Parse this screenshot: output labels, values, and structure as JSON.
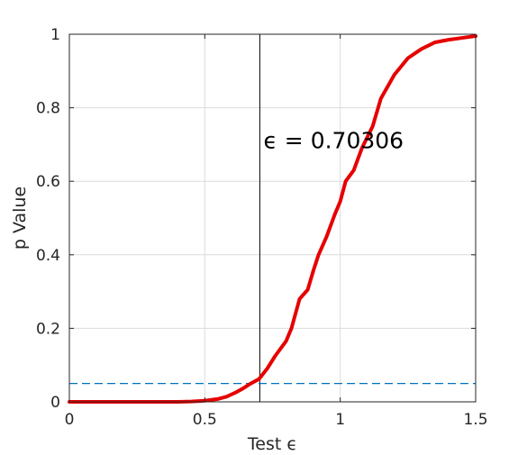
{
  "chart_data": {
    "type": "line",
    "xlabel": "Test ϵ",
    "ylabel": "p Value",
    "xlim": [
      0,
      1.5
    ],
    "ylim": [
      0,
      1
    ],
    "xticks": [
      0,
      0.5,
      1,
      1.5
    ],
    "xtick_labels": [
      "0",
      "0.5",
      "1",
      "1.5"
    ],
    "yticks": [
      0,
      0.2,
      0.4,
      0.6,
      0.8,
      1
    ],
    "ytick_labels": [
      "0",
      "0.2",
      "0.4",
      "0.6",
      "0.8",
      "1"
    ],
    "grid": true,
    "series": [
      {
        "color": "#e60000",
        "x": [
          0,
          0.1,
          0.2,
          0.3,
          0.4,
          0.45,
          0.5,
          0.55,
          0.58,
          0.61,
          0.64,
          0.67,
          0.7,
          0.73,
          0.76,
          0.8,
          0.82,
          0.85,
          0.88,
          0.9,
          0.92,
          0.95,
          0.98,
          1.0,
          1.02,
          1.05,
          1.08,
          1.1,
          1.12,
          1.15,
          1.2,
          1.25,
          1.3,
          1.35,
          1.4,
          1.45,
          1.5
        ],
        "y": [
          0,
          0,
          0,
          0,
          0,
          0.001,
          0.003,
          0.008,
          0.014,
          0.024,
          0.036,
          0.05,
          0.062,
          0.09,
          0.125,
          0.165,
          0.2,
          0.28,
          0.305,
          0.355,
          0.4,
          0.45,
          0.51,
          0.545,
          0.6,
          0.63,
          0.69,
          0.72,
          0.75,
          0.825,
          0.89,
          0.935,
          0.96,
          0.978,
          0.985,
          0.99,
          0.995
        ]
      }
    ],
    "reference_lines": [
      {
        "orientation": "vertical",
        "value": 0.70306,
        "color": "#000000",
        "style": "solid"
      },
      {
        "orientation": "horizontal",
        "value": 0.05,
        "color": "#0072bd",
        "style": "dashed"
      }
    ],
    "annotation": {
      "text": "ϵ = 0.70306",
      "x": 0.71,
      "y": 0.69
    }
  }
}
